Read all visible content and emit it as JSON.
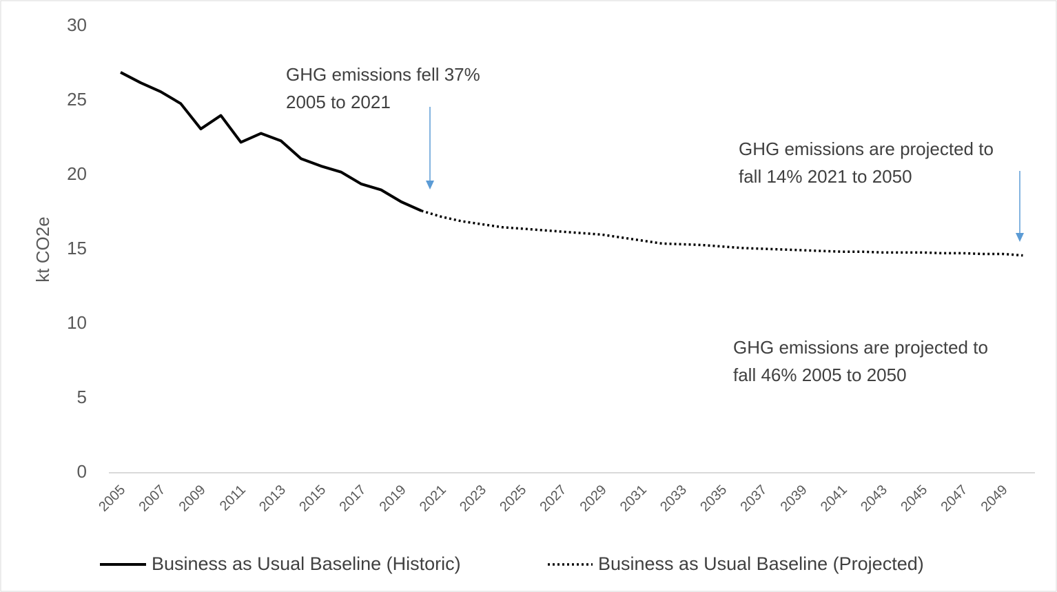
{
  "chart_data": {
    "type": "line",
    "y_label": "kt CO2e",
    "categories": [
      "2005",
      null,
      "2007",
      null,
      "2009",
      null,
      "2011",
      null,
      "2013",
      null,
      "2015",
      null,
      "2017",
      null,
      "2019",
      null,
      "2021",
      null,
      "2023",
      null,
      "2025",
      null,
      "2027",
      null,
      "2029",
      null,
      "2031",
      null,
      "2033",
      null,
      "2035",
      null,
      "2037",
      null,
      "2039",
      null,
      "2041",
      null,
      "2043",
      null,
      "2045",
      null,
      "2047",
      null,
      "2049",
      null
    ],
    "series": [
      {
        "name": "Business as Usual Baseline (Historic)",
        "color": "#000000",
        "style": "solid",
        "values": [
          26.9,
          26.2,
          25.6,
          24.8,
          23.1,
          24.0,
          22.2,
          22.8,
          22.3,
          21.1,
          20.6,
          20.2,
          19.4,
          19.0,
          18.2,
          17.6,
          null,
          null,
          null,
          null,
          null,
          null,
          null,
          null,
          null,
          null,
          null,
          null,
          null,
          null,
          null,
          null,
          null,
          null,
          null,
          null,
          null,
          null,
          null,
          null,
          null,
          null,
          null,
          null,
          null,
          null
        ]
      },
      {
        "name": "Business as Usual Baseline (Projected)",
        "color": "#000000",
        "style": "dotted",
        "values": [
          null,
          null,
          null,
          null,
          null,
          null,
          null,
          null,
          null,
          null,
          null,
          null,
          null,
          null,
          null,
          17.6,
          17.2,
          16.9,
          16.7,
          16.5,
          16.4,
          16.3,
          16.2,
          16.1,
          16.0,
          15.8,
          15.6,
          15.4,
          15.35,
          15.3,
          15.2,
          15.1,
          15.05,
          15.0,
          14.95,
          14.9,
          14.85,
          14.85,
          14.8,
          14.8,
          14.8,
          14.75,
          14.75,
          14.7,
          14.7,
          14.6
        ]
      }
    ],
    "ylim": [
      0,
      30
    ],
    "yticks": [
      0,
      5,
      10,
      15,
      20,
      25,
      30
    ],
    "grid": false,
    "legend": "bottom",
    "annotations": [
      {
        "lines": [
          "GHG emissions fell 37%",
          "2005 to 2021"
        ]
      },
      {
        "lines": [
          "GHG emissions are projected to",
          "fall 14% 2021 to 2050"
        ]
      },
      {
        "lines": [
          "GHG emissions are projected to",
          "fall 46% 2005 to 2050"
        ]
      }
    ]
  }
}
